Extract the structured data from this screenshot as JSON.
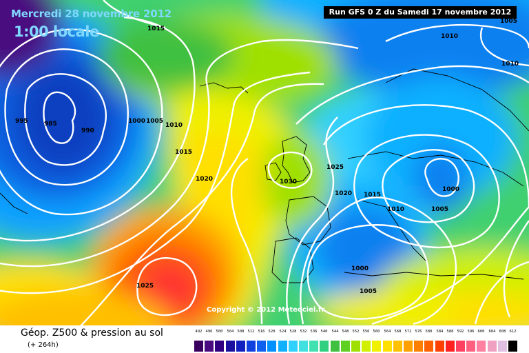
{
  "header": {
    "date": "Mercredi 28 novembre 2012",
    "time": "1:00 locale",
    "run": "Run GFS 0 Z du Samedi 17 novembre 2012"
  },
  "copyright": "Copyright © 2012 Meteociel.fr",
  "footer": {
    "title": "Géop. Z500 & pression au sol",
    "subtitle": "(+ 264h)"
  },
  "isobar_labels": [
    "1015",
    "1010",
    "995",
    "985",
    "990",
    "1000",
    "1005",
    "1010",
    "1015",
    "1020",
    "1030",
    "1025",
    "1020",
    "1015",
    "1010",
    "1005",
    "1000",
    "1000",
    "1005",
    "1025",
    "1010",
    "1005"
  ],
  "legend": {
    "values": [
      "492",
      "496",
      "500",
      "504",
      "508",
      "512",
      "516",
      "520",
      "524",
      "528",
      "532",
      "536",
      "540",
      "544",
      "548",
      "552",
      "556",
      "560",
      "564",
      "568",
      "572",
      "576",
      "580",
      "584",
      "588",
      "592",
      "596",
      "600",
      "604",
      "608",
      "612"
    ],
    "colors": [
      "#3a0060",
      "#4a0a80",
      "#300080",
      "#1a10a0",
      "#1020c0",
      "#1040e0",
      "#1060f0",
      "#0090ff",
      "#10b0ff",
      "#30d0ff",
      "#40e0e0",
      "#40e0b0",
      "#30d080",
      "#40c040",
      "#60d020",
      "#a0e000",
      "#d0f000",
      "#f0f000",
      "#ffe000",
      "#ffc000",
      "#ffa000",
      "#ff8000",
      "#ff6000",
      "#ff4000",
      "#ff2020",
      "#ff4060",
      "#ff6080",
      "#ff80a0",
      "#f0a0c0",
      "#e0c0e0",
      "#000000"
    ]
  }
}
